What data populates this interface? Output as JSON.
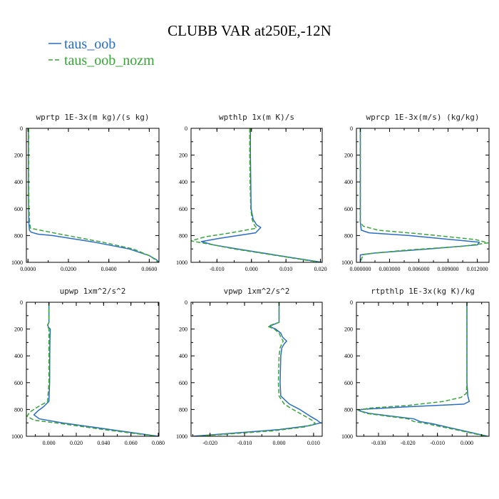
{
  "title": "CLUBB VAR at250E,-12N",
  "legend": [
    {
      "name": "taus_oob",
      "color": "#2b6cc4",
      "dash": "solid"
    },
    {
      "name": "taus_oob_nozm",
      "color": "#3aa33a",
      "dash": "dash"
    }
  ],
  "chart_data": [
    {
      "type": "line",
      "title": "wprtp  1E-3x(m kg)/(s kg)",
      "xlim": [
        -0.0008,
        0.0648
      ],
      "ylim": [
        0,
        1000
      ],
      "y_inverted": true,
      "xticks": [
        0.0,
        0.02,
        0.04,
        0.06
      ],
      "xtick_labels": [
        "0.0000",
        "0.0200",
        "0.0400",
        "0.0600"
      ],
      "yticks": [
        0,
        200,
        400,
        600,
        800,
        1000
      ],
      "ytick_labels": [
        "0",
        "200",
        "400",
        "600",
        "800",
        "1000"
      ],
      "series": [
        {
          "name": "taus_oob",
          "y": [
            0,
            200,
            400,
            600,
            700,
            760,
            775,
            790,
            800,
            850,
            900,
            950,
            980,
            1000
          ],
          "x": [
            0.0002,
            0.0002,
            0.0002,
            0.0003,
            0.0004,
            0.0007,
            0.0015,
            0.005,
            0.012,
            0.033,
            0.05,
            0.06,
            0.0635,
            0.0648
          ]
        },
        {
          "name": "taus_oob_nozm",
          "y": [
            0,
            200,
            400,
            600,
            700,
            745,
            760,
            790,
            850,
            900,
            950,
            980,
            1000
          ],
          "x": [
            0.0003,
            0.0003,
            0.0003,
            0.0005,
            0.0008,
            0.0012,
            0.006,
            0.016,
            0.037,
            0.052,
            0.06,
            0.063,
            0.0643
          ]
        }
      ]
    },
    {
      "type": "line",
      "title": "wpthlp  1x(m K)/s",
      "xlim": [
        -0.0175,
        0.0205
      ],
      "ylim": [
        0,
        1000
      ],
      "y_inverted": true,
      "xticks": [
        -0.01,
        0.0,
        0.01,
        0.02
      ],
      "xtick_labels": [
        "-0.010",
        "0.000",
        "0.010",
        "0.020"
      ],
      "yticks": [
        0,
        200,
        400,
        600,
        800,
        1000
      ],
      "ytick_labels": [
        "0",
        "200",
        "400",
        "600",
        "800",
        "1000"
      ],
      "series": [
        {
          "name": "taus_oob",
          "y": [
            0,
            200,
            400,
            600,
            680,
            720,
            740,
            780,
            820,
            845,
            870,
            900,
            950,
            1000
          ],
          "x": [
            -0.0003,
            -0.0003,
            -0.0002,
            -0.0001,
            0.0005,
            0.0015,
            0.0027,
            0.0012,
            -0.009,
            -0.0145,
            -0.011,
            -0.004,
            0.008,
            0.0205
          ]
        },
        {
          "name": "taus_oob_nozm",
          "y": [
            0,
            200,
            400,
            600,
            680,
            720,
            745,
            780,
            810,
            840,
            870,
            900,
            950,
            1000
          ],
          "x": [
            -0.0005,
            -0.0005,
            -0.0004,
            -0.0002,
            0.0002,
            0.0008,
            0.0015,
            -0.006,
            -0.0135,
            -0.0175,
            -0.011,
            -0.005,
            0.0075,
            0.0198
          ]
        }
      ]
    },
    {
      "type": "line",
      "title": "wprcp  1E-3x(m/s) (kg/kg)",
      "xlim": [
        -0.0004,
        0.0132
      ],
      "ylim": [
        0,
        1000
      ],
      "y_inverted": true,
      "xticks": [
        0.0,
        0.003,
        0.006,
        0.009,
        0.012
      ],
      "xtick_labels": [
        "0.000000",
        "0.003000",
        "0.006000",
        "0.009000",
        "0.012000"
      ],
      "yticks": [
        0,
        200,
        400,
        600,
        800,
        1000
      ],
      "ytick_labels": [
        "0",
        "200",
        "400",
        "600",
        "800",
        "1000"
      ],
      "series": [
        {
          "name": "taus_oob",
          "y": [
            0,
            200,
            400,
            600,
            700,
            760,
            780,
            800,
            850,
            870,
            900,
            930,
            945,
            1000
          ],
          "x": [
            0.0,
            0.0,
            0.0,
            0.0,
            0.0,
            0.0001,
            0.0009,
            0.005,
            0.0122,
            0.012,
            0.007,
            0.0015,
            0.0,
            0.0
          ]
        },
        {
          "name": "taus_oob_nozm",
          "y": [
            0,
            200,
            400,
            600,
            700,
            730,
            760,
            790,
            830,
            855,
            880,
            910,
            940,
            1000
          ],
          "x": [
            0.0,
            0.0,
            0.0,
            0.0,
            0.0,
            0.0003,
            0.0018,
            0.0065,
            0.0118,
            0.0131,
            0.0105,
            0.0045,
            0.0003,
            0.0
          ]
        }
      ]
    },
    {
      "type": "line",
      "title": "upwp  1xm^2/s^2",
      "xlim": [
        -0.0165,
        0.0805
      ],
      "ylim": [
        0,
        1000
      ],
      "y_inverted": true,
      "xticks": [
        0.0,
        0.02,
        0.04,
        0.06,
        0.08
      ],
      "xtick_labels": [
        "0.000",
        "0.020",
        "0.040",
        "0.060",
        "0.080"
      ],
      "yticks": [
        0,
        200,
        400,
        600,
        800,
        1000
      ],
      "ytick_labels": [
        "0",
        "200",
        "400",
        "600",
        "800",
        "1000"
      ],
      "series": [
        {
          "name": "taus_oob",
          "y": [
            0,
            150,
            170,
            185,
            200,
            250,
            400,
            600,
            740,
            780,
            810,
            840,
            870,
            900,
            950,
            1000
          ],
          "x": [
            0.0,
            0.0,
            -0.0008,
            -0.0005,
            0.001,
            0.0008,
            0.0006,
            0.0005,
            0.0,
            -0.004,
            -0.008,
            -0.011,
            -0.007,
            0.01,
            0.045,
            0.08
          ]
        },
        {
          "name": "taus_oob_nozm",
          "y": [
            0,
            150,
            170,
            185,
            200,
            250,
            400,
            600,
            740,
            780,
            820,
            850,
            880,
            900,
            950,
            1000
          ],
          "x": [
            0.0,
            0.0,
            -0.001,
            -0.0007,
            0.0,
            0.0,
            0.0,
            0.0,
            -0.001,
            -0.008,
            -0.014,
            -0.016,
            -0.011,
            0.005,
            0.04,
            0.079
          ]
        }
      ]
    },
    {
      "type": "line",
      "title": "vpwp  1xm^2/s^2",
      "xlim": [
        -0.0255,
        0.0125
      ],
      "ylim": [
        0,
        1000
      ],
      "y_inverted": true,
      "xticks": [
        -0.02,
        -0.01,
        0.0,
        0.01
      ],
      "xtick_labels": [
        "-0.020",
        "-0.010",
        "0.000",
        "0.010"
      ],
      "yticks": [
        0,
        200,
        400,
        600,
        800,
        1000
      ],
      "ytick_labels": [
        "0",
        "200",
        "400",
        "600",
        "800",
        "1000"
      ],
      "series": [
        {
          "name": "taus_oob",
          "y": [
            0,
            150,
            165,
            180,
            200,
            230,
            260,
            290,
            310,
            340,
            400,
            600,
            700,
            760,
            800,
            850,
            880,
            900,
            920,
            950,
            1000
          ],
          "x": [
            0.0,
            0.0,
            -0.0015,
            -0.0028,
            -0.001,
            0.0005,
            0.001,
            0.0022,
            0.0015,
            0.0008,
            0.0005,
            0.0003,
            0.0005,
            0.003,
            0.006,
            0.009,
            0.011,
            0.012,
            0.009,
            0.0,
            -0.025
          ]
        },
        {
          "name": "taus_oob_nozm",
          "y": [
            0,
            150,
            165,
            180,
            200,
            230,
            260,
            290,
            310,
            340,
            400,
            600,
            700,
            760,
            800,
            850,
            880,
            905,
            930,
            960,
            1000
          ],
          "x": [
            0.0,
            0.0,
            -0.0018,
            -0.0032,
            -0.0014,
            0.0,
            0.0005,
            0.0012,
            0.0008,
            0.0003,
            0.0,
            -0.0002,
            0.0,
            0.0015,
            0.004,
            0.0075,
            0.0095,
            0.0105,
            0.0075,
            -0.002,
            -0.024
          ]
        }
      ]
    },
    {
      "type": "line",
      "title": "rtpthlp  1E-3x(kg K)/kg",
      "xlim": [
        -0.0375,
        0.0075
      ],
      "ylim": [
        0,
        1000
      ],
      "y_inverted": true,
      "xticks": [
        -0.03,
        -0.02,
        -0.01,
        0.0
      ],
      "xtick_labels": [
        "-0.030",
        "-0.020",
        "-0.010",
        "0.000"
      ],
      "yticks": [
        0,
        200,
        400,
        600,
        800,
        1000
      ],
      "ytick_labels": [
        "0",
        "200",
        "400",
        "600",
        "800",
        "1000"
      ],
      "series": [
        {
          "name": "taus_oob",
          "y": [
            0,
            200,
            400,
            600,
            700,
            740,
            760,
            780,
            800,
            810,
            830,
            870,
            890,
            905,
            950,
            1000
          ],
          "x": [
            0.0,
            0.0,
            0.0,
            0.0,
            0.0003,
            0.0008,
            -0.001,
            -0.02,
            -0.036,
            -0.0365,
            -0.033,
            -0.018,
            -0.016,
            -0.012,
            -0.003,
            0.007
          ]
        },
        {
          "name": "taus_oob_nozm",
          "y": [
            0,
            200,
            400,
            600,
            680,
            710,
            740,
            770,
            790,
            805,
            830,
            870,
            890,
            905,
            950,
            1000
          ],
          "x": [
            0.0,
            0.0,
            0.0,
            0.0,
            -0.0002,
            -0.002,
            -0.008,
            -0.02,
            -0.033,
            -0.037,
            -0.034,
            -0.02,
            -0.018,
            -0.014,
            -0.004,
            0.0065
          ]
        }
      ]
    }
  ]
}
